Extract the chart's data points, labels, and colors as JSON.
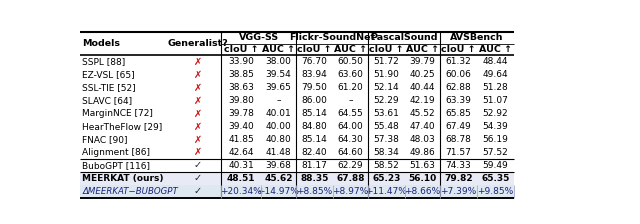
{
  "col_groups": [
    "VGG-SS",
    "Flickr-SoundNet",
    "PascalSound",
    "AVSBench"
  ],
  "rows": [
    {
      "model": "SSPL [88]",
      "ref_color": "#4169e1",
      "generalist": false,
      "values": [
        "33.90",
        "38.00",
        "76.70",
        "60.50",
        "51.72",
        "39.79",
        "61.32",
        "48.44"
      ]
    },
    {
      "model": "EZ-VSL [65]",
      "ref_color": "#4169e1",
      "generalist": false,
      "values": [
        "38.85",
        "39.54",
        "83.94",
        "63.60",
        "51.90",
        "40.25",
        "60.06",
        "49.64"
      ]
    },
    {
      "model": "SSL-TIE [52]",
      "ref_color": "#4169e1",
      "generalist": false,
      "values": [
        "38.63",
        "39.65",
        "79.50",
        "61.20",
        "52.14",
        "40.44",
        "62.88",
        "51.28"
      ]
    },
    {
      "model": "SLAVC [64]",
      "ref_color": "#4169e1",
      "generalist": false,
      "values": [
        "39.80",
        "–",
        "86.00",
        "–",
        "52.29",
        "42.19",
        "63.39",
        "51.07"
      ]
    },
    {
      "model": "MarginNCE [72]",
      "ref_color": "#4169e1",
      "generalist": false,
      "values": [
        "39.78",
        "40.01",
        "85.14",
        "64.55",
        "53.61",
        "45.52",
        "65.85",
        "52.92"
      ]
    },
    {
      "model": "HearTheFlow [29]",
      "ref_color": "#4169e1",
      "generalist": false,
      "values": [
        "39.40",
        "40.00",
        "84.80",
        "64.00",
        "55.48",
        "47.40",
        "67.49",
        "54.39"
      ]
    },
    {
      "model": "FNAC [90]",
      "ref_color": "#4169e1",
      "generalist": false,
      "values": [
        "41.85",
        "40.80",
        "85.14",
        "64.30",
        "57.38",
        "48.03",
        "68.78",
        "56.19"
      ]
    },
    {
      "model": "Alignment [86]",
      "ref_color": "#4169e1",
      "generalist": false,
      "values": [
        "42.64",
        "41.48",
        "82.40",
        "64.60",
        "58.34",
        "49.86",
        "71.57",
        "57.52"
      ]
    },
    {
      "model": "BuboGPT [116]",
      "ref_color": "#4169e1",
      "generalist": true,
      "values": [
        "40.31",
        "39.68",
        "81.17",
        "62.29",
        "58.52",
        "51.63",
        "74.33",
        "59.49"
      ],
      "sep_before": true
    },
    {
      "model": "MEERKAT (ours)",
      "ref_color": null,
      "generalist": true,
      "values": [
        "48.51",
        "45.62",
        "88.35",
        "67.88",
        "65.23",
        "56.10",
        "79.82",
        "65.35"
      ],
      "bold": true,
      "sep_before": true,
      "bg": "#e8eaf6"
    },
    {
      "model": "ΔMEERKAT−BUBOGPT",
      "ref_color": null,
      "generalist": true,
      "values": [
        "+20.34%",
        "+14.97%",
        "+8.85%",
        "+8.97%",
        "+11.47%",
        "+8.66%",
        "+7.39%",
        "+9.85%"
      ],
      "delta": true,
      "bg": "#dde8f0"
    }
  ],
  "cross_color": "#cc1111",
  "check_color": "#222222",
  "delta_text_color": "#1a237e",
  "font_size": 6.5,
  "header_font_size": 6.8
}
